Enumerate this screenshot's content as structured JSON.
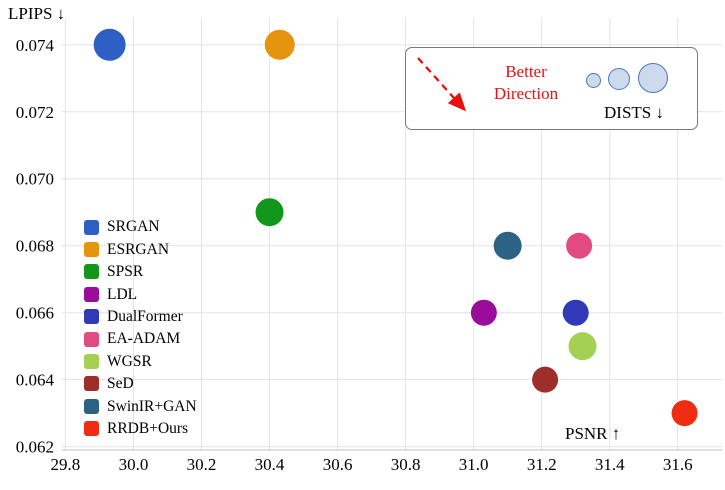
{
  "chart_data": {
    "type": "scatter",
    "title": "",
    "xlabel": "PSNR ↑",
    "ylabel": "LPIPS ↓",
    "xlim": [
      29.79,
      31.73
    ],
    "ylim": [
      0.0619,
      0.0748
    ],
    "xticks": [
      "29.8",
      "30.0",
      "30.2",
      "30.4",
      "30.6",
      "30.8",
      "31.0",
      "31.2",
      "31.4",
      "31.6"
    ],
    "yticks": [
      "0.062",
      "0.064",
      "0.066",
      "0.068",
      "0.070",
      "0.072",
      "0.074"
    ],
    "grid": true,
    "legend_position": "lower-left-inside",
    "bubble_size_meaning": "DISTS ↓ (larger bubble = larger DISTS)",
    "points": [
      {
        "name": "SRGAN",
        "color": "#2d5fc4",
        "x": 29.93,
        "y": 0.074,
        "r": 16
      },
      {
        "name": "ESRGAN",
        "color": "#e5940e",
        "x": 30.43,
        "y": 0.074,
        "r": 15
      },
      {
        "name": "SPSR",
        "color": "#12971b",
        "x": 30.4,
        "y": 0.069,
        "r": 14
      },
      {
        "name": "LDL",
        "color": "#9a0d9a",
        "x": 31.03,
        "y": 0.066,
        "r": 13
      },
      {
        "name": "DualFormer",
        "color": "#3039b8",
        "x": 31.3,
        "y": 0.066,
        "r": 13
      },
      {
        "name": "EA-ADAM",
        "color": "#e24b80",
        "x": 31.31,
        "y": 0.068,
        "r": 13
      },
      {
        "name": "WGSR",
        "color": "#a5d152",
        "x": 31.32,
        "y": 0.065,
        "r": 14
      },
      {
        "name": "SeD",
        "color": "#9e2e2c",
        "x": 31.21,
        "y": 0.064,
        "r": 13
      },
      {
        "name": "SwinIR+GAN",
        "color": "#2c6384",
        "x": 31.1,
        "y": 0.068,
        "r": 14
      },
      {
        "name": "RRDB+Ours",
        "color": "#f02c12",
        "x": 31.62,
        "y": 0.063,
        "r": 13
      }
    ],
    "inset": {
      "better_line1": "Better",
      "better_line2": "Direction",
      "dists_label": "DISTS ↓",
      "circle_diameters": [
        15,
        22,
        30
      ]
    },
    "colors": {
      "grid": "#e3e3e3",
      "axis": "#c0c0c0",
      "arrow": "#ea1010",
      "better_text": "#e81010",
      "inset_circle_fill": "#cdd9ec",
      "inset_circle_stroke": "#4b77bd",
      "tick_text": "#000000"
    }
  }
}
